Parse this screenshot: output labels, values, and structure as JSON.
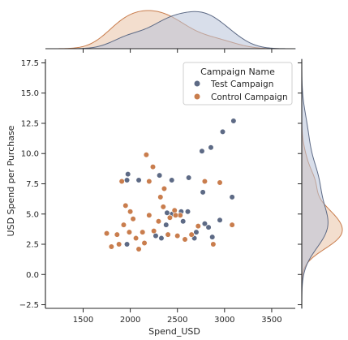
{
  "chart_data": {
    "type": "scatter",
    "title": "",
    "xlabel": "Spend_USD",
    "ylabel": "USD Spend per Purchase",
    "xlim": [
      1100,
      3750
    ],
    "ylim": [
      -2.8,
      17.8
    ],
    "xticks": [
      1500,
      2000,
      2500,
      3000,
      3500
    ],
    "xtick_labels": [
      "1500",
      "2000",
      "2500",
      "3000",
      "3500"
    ],
    "yticks": [
      -2.5,
      0.0,
      2.5,
      5.0,
      7.5,
      10.0,
      12.5,
      15.0,
      17.5
    ],
    "ytick_labels": [
      "−2.5",
      "0.0",
      "2.5",
      "5.0",
      "7.5",
      "10.0",
      "12.5",
      "15.0",
      "17.5"
    ],
    "grid": false,
    "legend": {
      "title": "Campaign Name",
      "placement": "top-right"
    },
    "marginals": {
      "x": "kde",
      "y": "kde"
    },
    "series": [
      {
        "name": "Test Campaign",
        "color": "#5d6a85",
        "fill": "#b8c2d8",
        "points": [
          [
            1975,
            8.3
          ],
          [
            2090,
            7.8
          ],
          [
            1965,
            7.8
          ],
          [
            1965,
            2.5
          ],
          [
            2310,
            8.2
          ],
          [
            2440,
            7.8
          ],
          [
            2620,
            8.0
          ],
          [
            2760,
            10.2
          ],
          [
            2855,
            10.5
          ],
          [
            2980,
            11.8
          ],
          [
            3095,
            12.7
          ],
          [
            3080,
            6.4
          ],
          [
            2770,
            6.8
          ],
          [
            2540,
            5.2
          ],
          [
            2390,
            5.1
          ],
          [
            2445,
            5.0
          ],
          [
            2270,
            3.2
          ],
          [
            2330,
            3.0
          ],
          [
            2380,
            4.1
          ],
          [
            2560,
            4.4
          ],
          [
            2610,
            5.2
          ],
          [
            2700,
            3.5
          ],
          [
            2790,
            4.2
          ],
          [
            2830,
            3.9
          ],
          [
            2870,
            3.1
          ],
          [
            2950,
            4.5
          ],
          [
            2680,
            3.0
          ]
        ]
      },
      {
        "name": "Control Campaign",
        "color": "#c97d4d",
        "fill": "#e9c2a6",
        "points": [
          [
            1750,
            3.4
          ],
          [
            1800,
            2.3
          ],
          [
            1860,
            3.3
          ],
          [
            1880,
            2.5
          ],
          [
            1910,
            7.7
          ],
          [
            1930,
            4.1
          ],
          [
            1950,
            5.7
          ],
          [
            1990,
            3.5
          ],
          [
            2000,
            5.2
          ],
          [
            2030,
            4.6
          ],
          [
            2060,
            3.0
          ],
          [
            2090,
            2.1
          ],
          [
            2130,
            3.5
          ],
          [
            2170,
            9.9
          ],
          [
            2200,
            7.7
          ],
          [
            2240,
            8.9
          ],
          [
            2250,
            3.6
          ],
          [
            2300,
            4.4
          ],
          [
            2320,
            6.4
          ],
          [
            2360,
            7.1
          ],
          [
            2400,
            3.3
          ],
          [
            2420,
            4.7
          ],
          [
            2470,
            5.3
          ],
          [
            2500,
            3.2
          ],
          [
            2530,
            4.9
          ],
          [
            2580,
            2.9
          ],
          [
            2650,
            3.3
          ],
          [
            2720,
            4.0
          ],
          [
            2790,
            7.7
          ],
          [
            2880,
            2.5
          ],
          [
            2950,
            7.6
          ],
          [
            3080,
            4.1
          ],
          [
            2150,
            2.6
          ],
          [
            2200,
            4.9
          ],
          [
            2350,
            5.6
          ],
          [
            2480,
            4.9
          ]
        ]
      }
    ]
  }
}
